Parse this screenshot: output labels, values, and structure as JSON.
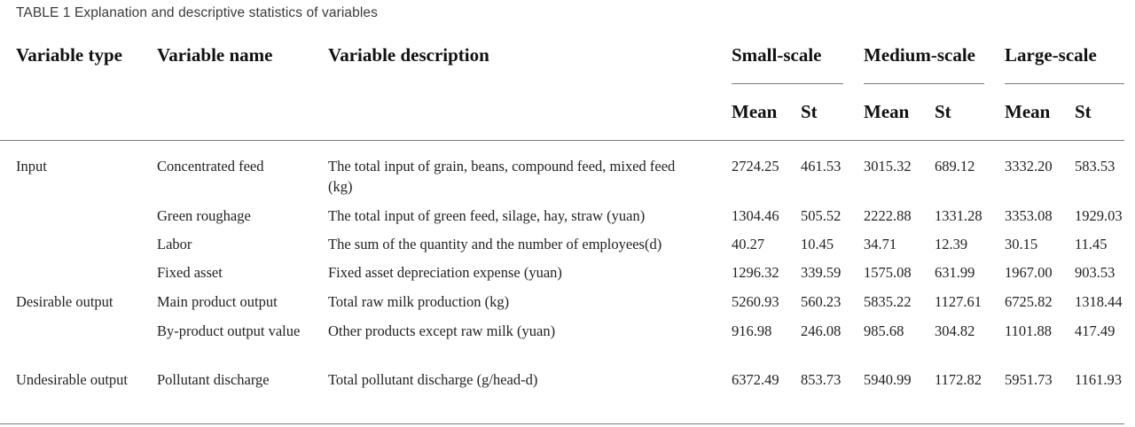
{
  "caption": "TABLE 1 Explanation and descriptive statistics of variables",
  "headers": {
    "variable_type": "Variable type",
    "variable_name": "Variable name",
    "variable_description": "Variable description",
    "groups": [
      "Small-scale",
      "Medium-scale",
      "Large-scale"
    ],
    "mean": "Mean",
    "st": "St"
  },
  "rows": [
    {
      "type": "Input",
      "name": "Concentrated feed",
      "desc": "The total input of grain, beans, compound feed, mixed feed (kg)",
      "vals": [
        "2724.25",
        "461.53",
        "3015.32",
        "689.12",
        "3332.20",
        "583.53"
      ]
    },
    {
      "type": "",
      "name": "Green roughage",
      "desc": "The total input of green feed, silage, hay, straw (yuan)",
      "vals": [
        "1304.46",
        "505.52",
        "2222.88",
        "1331.28",
        "3353.08",
        "1929.03"
      ]
    },
    {
      "type": "",
      "name": "Labor",
      "desc": "The sum of the quantity and the number of employees(d)",
      "vals": [
        "40.27",
        "10.45",
        "34.71",
        "12.39",
        "30.15",
        "11.45"
      ]
    },
    {
      "type": "",
      "name": "Fixed asset",
      "desc": "Fixed asset depreciation expense (yuan)",
      "vals": [
        "1296.32",
        "339.59",
        "1575.08",
        "631.99",
        "1967.00",
        "903.53"
      ]
    },
    {
      "type": "Desirable output",
      "name": "Main product output",
      "desc": "Total raw milk production (kg)",
      "vals": [
        "5260.93",
        "560.23",
        "5835.22",
        "1127.61",
        "6725.82",
        "1318.44"
      ]
    },
    {
      "type": "",
      "name": "By-product output value",
      "desc": "Other products except raw milk (yuan)",
      "vals": [
        "916.98",
        "246.08",
        "985.68",
        "304.82",
        "1101.88",
        "417.49"
      ]
    },
    {
      "type": "Undesirable output",
      "name": "Pollutant discharge",
      "desc": "Total pollutant discharge (g/head-d)",
      "vals": [
        "6372.49",
        "853.73",
        "5940.99",
        "1172.82",
        "5951.73",
        "1161.93"
      ]
    }
  ]
}
